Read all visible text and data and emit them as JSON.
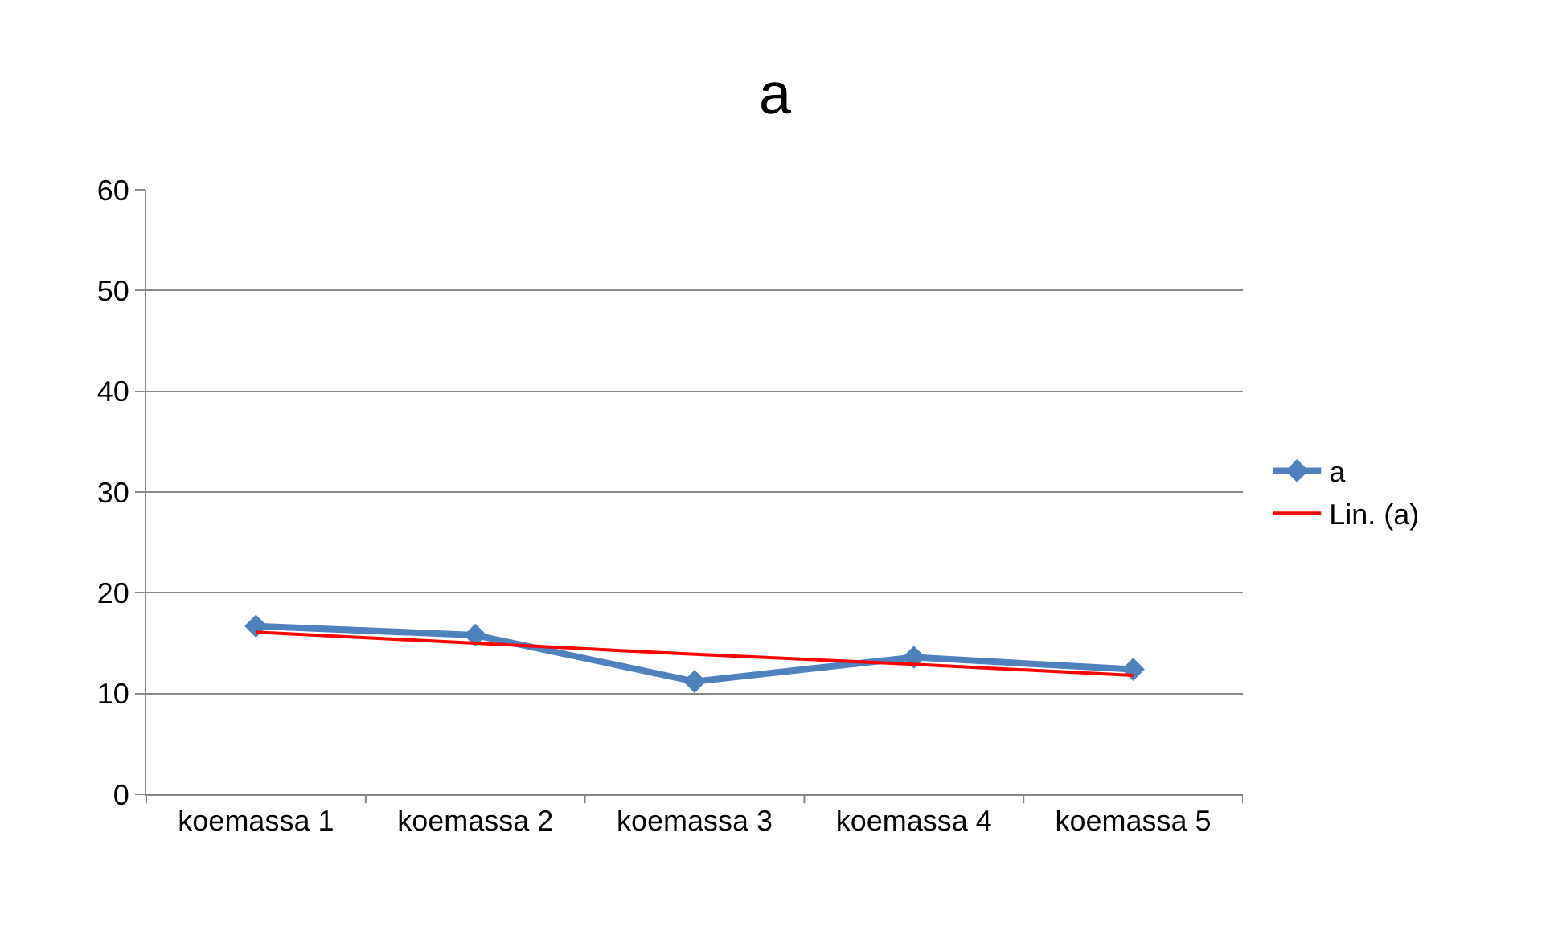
{
  "chart_data": {
    "type": "line",
    "title": "a",
    "categories": [
      "koemassa 1",
      "koemassa 2",
      "koemassa 3",
      "koemassa 4",
      "koemassa 5"
    ],
    "series": [
      {
        "name": "a",
        "color": "#4f81bd",
        "marker": "diamond",
        "values": [
          16.7,
          15.8,
          11.2,
          13.6,
          12.4
        ]
      },
      {
        "name": "Lin. (a)",
        "type": "line",
        "color": "#ff0000",
        "marker": "none",
        "values": [
          16.1,
          15.0,
          13.9,
          12.9,
          11.8
        ]
      }
    ],
    "ylim": [
      0,
      60
    ],
    "yticks": [
      0,
      10,
      20,
      30,
      40,
      50,
      60
    ],
    "grid": "y",
    "legend": "right"
  }
}
